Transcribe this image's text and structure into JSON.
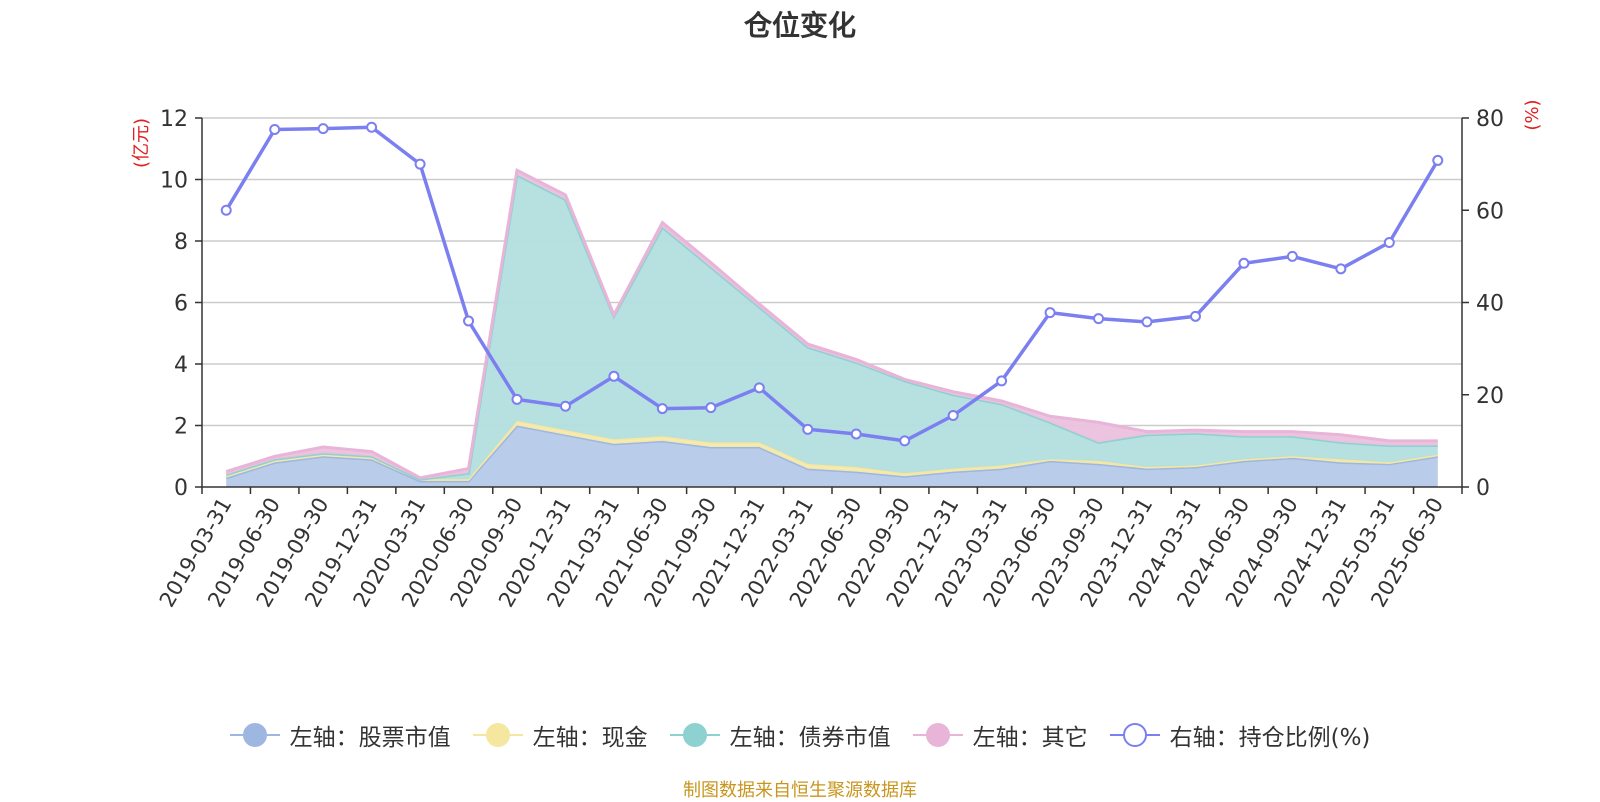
{
  "chart_data": {
    "type": "area",
    "title": "仓位变化",
    "source": "制图数据来自恒生聚源数据库",
    "left_axis": {
      "unit": "(亿元)",
      "ylim": [
        0,
        12
      ],
      "ticks": [
        "0",
        "2",
        "4",
        "6",
        "8",
        "10",
        "12"
      ]
    },
    "right_axis": {
      "unit": "(%)",
      "ylim": [
        0,
        80
      ],
      "ticks": [
        "0",
        "20",
        "40",
        "60",
        "80"
      ]
    },
    "categories": [
      "2019-03-31",
      "2019-06-30",
      "2019-09-30",
      "2019-12-31",
      "2020-03-31",
      "2020-06-30",
      "2020-09-30",
      "2020-12-31",
      "2021-03-31",
      "2021-06-30",
      "2021-09-30",
      "2021-12-31",
      "2022-03-31",
      "2022-06-30",
      "2022-09-30",
      "2022-12-31",
      "2023-03-31",
      "2023-06-30",
      "2023-09-30",
      "2023-12-31",
      "2024-03-31",
      "2024-06-30",
      "2024-09-30",
      "2024-12-31",
      "2025-03-31",
      "2025-06-30"
    ],
    "stacked_series": [
      {
        "name": "左轴：股票市值",
        "color": "#9db7e0",
        "fill": "#b5c9e8",
        "values": [
          0.3,
          0.8,
          1.0,
          0.9,
          0.2,
          0.2,
          2.0,
          1.7,
          1.4,
          1.5,
          1.3,
          1.3,
          0.6,
          0.5,
          0.35,
          0.5,
          0.6,
          0.85,
          0.75,
          0.6,
          0.65,
          0.85,
          0.95,
          0.8,
          0.75,
          1.0
        ]
      },
      {
        "name": "左轴：现金",
        "color": "#f5e6a0",
        "fill": "#f7eaab",
        "values": [
          0.1,
          0.1,
          0.1,
          0.1,
          0.05,
          0.05,
          0.15,
          0.15,
          0.15,
          0.15,
          0.15,
          0.15,
          0.15,
          0.15,
          0.1,
          0.1,
          0.1,
          0.05,
          0.1,
          0.05,
          0.05,
          0.05,
          0.05,
          0.1,
          0.05,
          0.05
        ]
      },
      {
        "name": "左轴：债券市值",
        "color": "#8ed1d1",
        "fill": "#b3dfdf",
        "values": [
          0,
          0,
          0,
          0,
          0,
          0.2,
          8.0,
          7.5,
          4.0,
          6.8,
          5.7,
          4.4,
          3.8,
          3.4,
          3.0,
          2.4,
          2.0,
          1.2,
          0.6,
          1.05,
          1.05,
          0.75,
          0.65,
          0.55,
          0.55,
          0.3
        ]
      },
      {
        "name": "左轴：其它",
        "color": "#e8b4d8",
        "fill": "#ecc1de",
        "values": [
          0.1,
          0.1,
          0.2,
          0.15,
          0.05,
          0.15,
          0.15,
          0.15,
          0.05,
          0.15,
          0.15,
          0.1,
          0.1,
          0.1,
          0.05,
          0.1,
          0.1,
          0.2,
          0.65,
          0.1,
          0.1,
          0.15,
          0.15,
          0.25,
          0.15,
          0.15
        ]
      }
    ],
    "line_series": {
      "name": "右轴：持仓比例(%)",
      "color": "#7b7ff0",
      "values": [
        60,
        77.5,
        77.7,
        78,
        70,
        36,
        19,
        17.5,
        24,
        17,
        17.2,
        21.5,
        12.5,
        11.5,
        10,
        15.5,
        23,
        37.8,
        36.5,
        35.8,
        37,
        48.5,
        50,
        47.3,
        53,
        70.8
      ]
    }
  }
}
